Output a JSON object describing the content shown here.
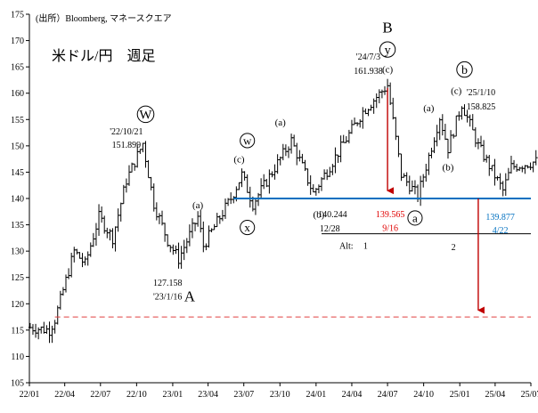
{
  "chart_data": {
    "type": "ohlc",
    "source": "(出所）Bloomberg, マネースクエア",
    "title": "米ドル/円　週足",
    "xlabel": "",
    "ylabel": "",
    "ylim": [
      105,
      175
    ],
    "y_ticks": [
      105,
      110,
      115,
      120,
      125,
      130,
      135,
      140,
      145,
      150,
      155,
      160,
      165,
      170,
      175
    ],
    "xlim": [
      "2022/01",
      "2025/07"
    ],
    "x_tick_labels": [
      "22/01",
      "22/04",
      "22/07",
      "22/10",
      "23/01",
      "23/04",
      "23/07",
      "23/10",
      "24/01",
      "24/04",
      "24/07",
      "24/10",
      "25/01",
      "25/04",
      "25/07"
    ],
    "grid": false,
    "legend": "none",
    "ohlc_anchor_points": [
      {
        "date": "2022/01/03",
        "price": 115.5
      },
      {
        "date": "2022/02/21",
        "price": 115.0
      },
      {
        "date": "2022/03/07",
        "price": 117.0
      },
      {
        "date": "2022/04/25",
        "price": 130.0
      },
      {
        "date": "2022/05/23",
        "price": 127.5
      },
      {
        "date": "2022/06/27",
        "price": 136.5
      },
      {
        "date": "2022/08/01",
        "price": 132.5
      },
      {
        "date": "2022/09/05",
        "price": 143.5
      },
      {
        "date": "2022/10/17",
        "price": 150.5
      },
      {
        "date": "2022/11/14",
        "price": 139.0
      },
      {
        "date": "2022/12/19",
        "price": 132.0
      },
      {
        "date": "2023/01/16",
        "price": 128.5
      },
      {
        "date": "2023/03/06",
        "price": 136.5
      },
      {
        "date": "2023/03/20",
        "price": 131.0
      },
      {
        "date": "2023/05/29",
        "price": 140.0
      },
      {
        "date": "2023/06/26",
        "price": 144.5
      },
      {
        "date": "2023/07/24",
        "price": 139.0
      },
      {
        "date": "2023/10/30",
        "price": 151.0
      },
      {
        "date": "2023/12/25",
        "price": 141.0
      },
      {
        "date": "2024/04/29",
        "price": 156.5
      },
      {
        "date": "2024/07/01",
        "price": 161.5
      },
      {
        "date": "2024/08/05",
        "price": 144.5
      },
      {
        "date": "2024/09/16",
        "price": 140.5
      },
      {
        "date": "2024/11/11",
        "price": 155.5
      },
      {
        "date": "2024/12/02",
        "price": 149.5
      },
      {
        "date": "2025/01/06",
        "price": 158.0
      },
      {
        "date": "2025/02/17",
        "price": 150.0
      },
      {
        "date": "2025/04/21",
        "price": 141.5
      },
      {
        "date": "2025/05/12",
        "price": 146.0
      },
      {
        "date": "2025/07/14",
        "price": 147.0
      }
    ],
    "reference_lines": [
      {
        "kind": "horizontal",
        "style": "solid",
        "color": "#0070c0",
        "y": 140,
        "from": "2023/06/05",
        "to": "2025/07/28"
      },
      {
        "kind": "horizontal",
        "style": "dashed",
        "color": "#e04040",
        "y": 117.5,
        "from": "2022/03/07",
        "to": "2025/07/28"
      },
      {
        "kind": "horizontal",
        "style": "solid",
        "color": "#000000",
        "y": 133.3,
        "from": "2024/01/15",
        "to": "2025/07/28"
      },
      {
        "kind": "arrow",
        "color": "#c00000",
        "date": "2024/07/01",
        "y_from": 161.0,
        "y_to": 140.3
      },
      {
        "kind": "arrow",
        "color": "#c00000",
        "date": "2025/02/17",
        "y_from": 140.0,
        "y_to": 117.6
      }
    ],
    "annotations": [
      {
        "text": "B",
        "date": "2024/07/01",
        "y": 172.5,
        "size": 17,
        "color": "#000000"
      },
      {
        "text": "y",
        "date": "2024/07/01",
        "y": 168.3,
        "circled": true,
        "size": 14,
        "color": "#000000"
      },
      {
        "text": "(c)",
        "date": "2024/07/01",
        "y": 164.6,
        "size": 11,
        "color": "#000000"
      },
      {
        "text": "'24/7/3",
        "date": "2024/05/13",
        "y": 167.0,
        "size": 10,
        "color": "#000000"
      },
      {
        "text": "161.938",
        "date": "2024/05/13",
        "y": 164.3,
        "size": 10,
        "color": "#000000"
      },
      {
        "text": "b",
        "date": "2025/01/13",
        "y": 164.5,
        "circled": true,
        "size": 14,
        "color": "#000000"
      },
      {
        "text": "(c)",
        "date": "2024/12/23",
        "y": 160.5,
        "size": 11,
        "color": "#000000"
      },
      {
        "text": "'25/1/10",
        "date": "2025/02/24",
        "y": 160.2,
        "size": 10,
        "color": "#000000"
      },
      {
        "text": "158.825",
        "date": "2025/02/24",
        "y": 157.5,
        "size": 10,
        "color": "#000000"
      },
      {
        "text": "(a)",
        "date": "2024/10/14",
        "y": 157.2,
        "size": 11,
        "color": "#000000"
      },
      {
        "text": "(b)",
        "date": "2024/12/02",
        "y": 146.0,
        "size": 11,
        "color": "#000000"
      },
      {
        "text": "W",
        "date": "2022/10/24",
        "y": 156.0,
        "circled": true,
        "size": 15,
        "color": "#000000"
      },
      {
        "text": "'22/10/21",
        "date": "2022/09/05",
        "y": 152.8,
        "size": 10,
        "color": "#000000"
      },
      {
        "text": "151.899",
        "date": "2022/09/05",
        "y": 150.2,
        "size": 10,
        "color": "#000000"
      },
      {
        "text": "(a)",
        "date": "2023/03/06",
        "y": 138.8,
        "size": 11,
        "color": "#000000"
      },
      {
        "text": "w",
        "date": "2023/07/10",
        "y": 151.0,
        "circled": true,
        "size": 13,
        "color": "#000000"
      },
      {
        "text": "(c)",
        "date": "2023/06/19",
        "y": 147.5,
        "size": 11,
        "color": "#000000"
      },
      {
        "text": "x",
        "date": "2023/07/10",
        "y": 134.5,
        "circled": true,
        "size": 13,
        "color": "#000000"
      },
      {
        "text": "(a)",
        "date": "2023/10/02",
        "y": 154.5,
        "size": 11,
        "color": "#000000"
      },
      {
        "text": "(b)",
        "date": "2024/01/08",
        "y": 137.0,
        "size": 11,
        "color": "#000000"
      },
      {
        "text": "140.244",
        "date": "2024/02/12",
        "y": 137.0,
        "size": 10,
        "color": "#000000"
      },
      {
        "text": "12/28",
        "date": "2024/02/05",
        "y": 134.3,
        "size": 10,
        "color": "#000000"
      },
      {
        "text": "139.565",
        "date": "2024/07/08",
        "y": 137.0,
        "size": 10,
        "color": "#e00000"
      },
      {
        "text": "9/16",
        "date": "2024/07/08",
        "y": 134.4,
        "size": 10,
        "color": "#e00000"
      },
      {
        "text": "a",
        "date": "2024/09/09",
        "y": 136.3,
        "circled": true,
        "size": 13,
        "color": "#000000"
      },
      {
        "text": "139.877",
        "date": "2025/04/14",
        "y": 136.5,
        "size": 10,
        "color": "#0070c0"
      },
      {
        "text": "4/22",
        "date": "2025/04/14",
        "y": 134.0,
        "size": 10,
        "color": "#0070c0"
      },
      {
        "text": "Alt:",
        "date": "2024/03/18",
        "y": 131.0,
        "size": 10,
        "color": "#000000"
      },
      {
        "text": "1",
        "date": "2024/05/06",
        "y": 131.0,
        "size": 10,
        "color": "#000000"
      },
      {
        "text": "2",
        "date": "2024/12/16",
        "y": 130.8,
        "size": 10,
        "color": "#000000"
      },
      {
        "text": "127.158",
        "date": "2022/12/19",
        "y": 124.0,
        "size": 10,
        "color": "#000000"
      },
      {
        "text": "'23/1/16",
        "date": "2022/12/19",
        "y": 121.4,
        "size": 10,
        "color": "#000000"
      },
      {
        "text": "A",
        "date": "2023/02/13",
        "y": 121.5,
        "size": 17,
        "color": "#000000"
      }
    ]
  }
}
